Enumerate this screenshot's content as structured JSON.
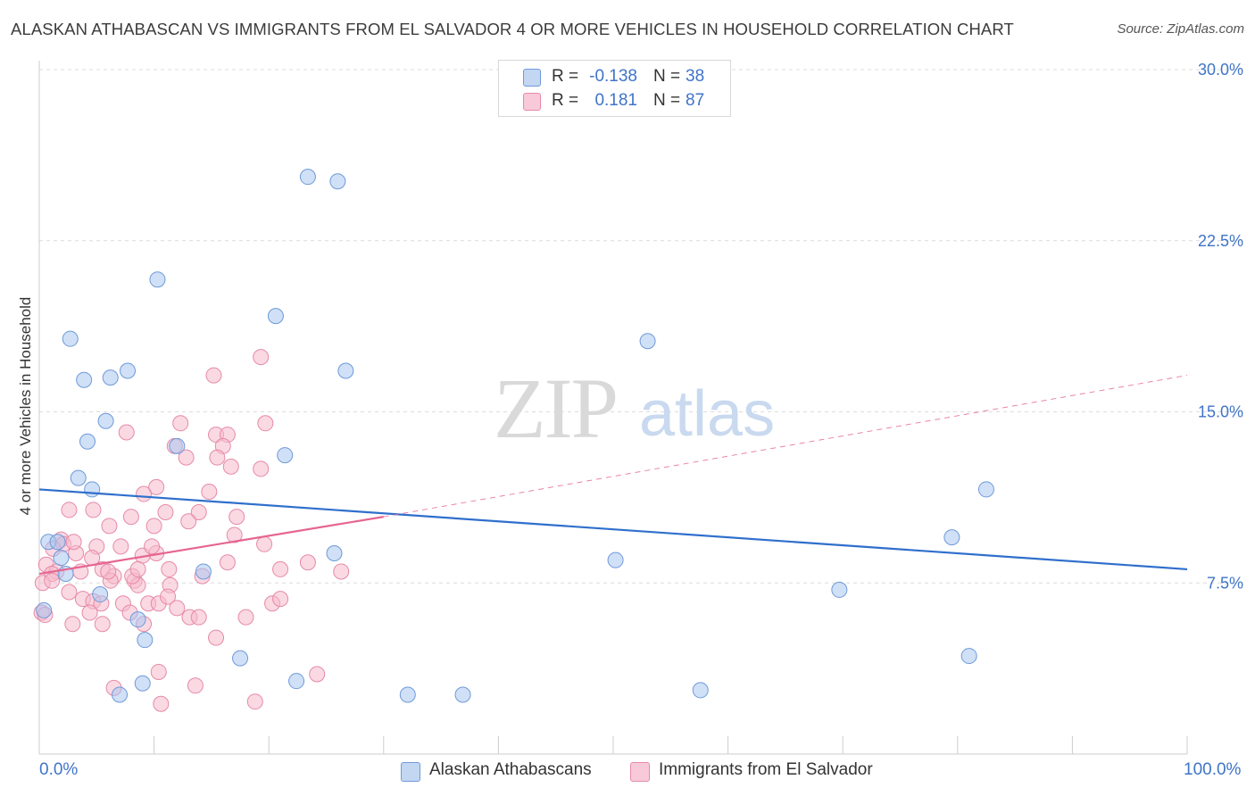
{
  "header": {
    "title": "ALASKAN ATHABASCAN VS IMMIGRANTS FROM EL SALVADOR 4 OR MORE VEHICLES IN HOUSEHOLD CORRELATION CHART",
    "source": "Source: ZipAtlas.com"
  },
  "legend": {
    "rows": [
      {
        "r_label": "R =",
        "r_value": "-0.138",
        "n_label": "N =",
        "n_value": "38"
      },
      {
        "r_label": "R =",
        "r_value": "0.181",
        "n_label": "N =",
        "n_value": "87"
      }
    ]
  },
  "bottom_legend": {
    "blue": "Alaskan Athabascans",
    "pink": "Immigrants from El Salvador"
  },
  "watermark": {
    "zip": "ZIP",
    "atlas": "atlas"
  },
  "colors": {
    "blue_fill": "#a9c7f0",
    "blue_stroke": "#6f9ad8",
    "blue_line": "#2f6fcc",
    "pink_fill": "#f5b9cc",
    "pink_stroke": "#e68aa8",
    "pink_line": "#e56591",
    "axis_text": "#3f74c8",
    "grid": "#dcdcdc"
  },
  "chart_data": {
    "type": "scatter",
    "title": "ALASKAN ATHABASCAN VS IMMIGRANTS FROM EL SALVADOR 4 OR MORE VEHICLES IN HOUSEHOLD CORRELATION CHART",
    "xlabel": "",
    "ylabel": "4 or more Vehicles in Household",
    "xlim": [
      0,
      100
    ],
    "ylim": [
      0,
      30
    ],
    "x_tick_labels": [
      "0.0%",
      "100.0%"
    ],
    "y_ticks": [
      7.5,
      15.0,
      22.5,
      30.0
    ],
    "y_tick_labels": [
      "7.5%",
      "15.0%",
      "22.5%",
      "30.0%"
    ],
    "grid": true,
    "legend_position": "top-center",
    "series": [
      {
        "name": "Alaskan Athabascans",
        "color": "#a9c7f0",
        "r": -0.138,
        "n": 38,
        "trend": {
          "x": [
            0,
            100
          ],
          "y": [
            11.6,
            8.1
          ]
        },
        "points": [
          [
            23.4,
            25.3
          ],
          [
            26.0,
            25.1
          ],
          [
            10.3,
            20.8
          ],
          [
            20.6,
            19.2
          ],
          [
            2.7,
            18.2
          ],
          [
            7.7,
            16.8
          ],
          [
            6.2,
            16.5
          ],
          [
            3.9,
            16.4
          ],
          [
            26.7,
            16.8
          ],
          [
            53.0,
            18.1
          ],
          [
            5.8,
            14.6
          ],
          [
            4.2,
            13.7
          ],
          [
            12.0,
            13.5
          ],
          [
            21.4,
            13.1
          ],
          [
            3.4,
            12.1
          ],
          [
            4.6,
            11.6
          ],
          [
            82.5,
            11.6
          ],
          [
            0.8,
            9.3
          ],
          [
            1.6,
            9.3
          ],
          [
            79.5,
            9.5
          ],
          [
            25.7,
            8.8
          ],
          [
            1.9,
            8.6
          ],
          [
            2.3,
            7.9
          ],
          [
            14.3,
            8.0
          ],
          [
            50.2,
            8.5
          ],
          [
            5.3,
            7.0
          ],
          [
            69.7,
            7.2
          ],
          [
            0.4,
            6.3
          ],
          [
            8.6,
            5.9
          ],
          [
            9.2,
            5.0
          ],
          [
            17.5,
            4.2
          ],
          [
            81.0,
            4.3
          ],
          [
            9.0,
            3.1
          ],
          [
            22.4,
            3.2
          ],
          [
            7.0,
            2.6
          ],
          [
            32.1,
            2.6
          ],
          [
            36.9,
            2.6
          ],
          [
            57.6,
            2.8
          ]
        ]
      },
      {
        "name": "Immigrants from El Salvador",
        "color": "#f5b9cc",
        "r": 0.181,
        "n": 87,
        "trend": {
          "x": [
            0,
            30
          ],
          "y": [
            7.9,
            10.4
          ]
        },
        "trend_dashed": {
          "x": [
            30,
            100
          ],
          "y": [
            10.4,
            16.6
          ]
        },
        "points": [
          [
            19.3,
            17.4
          ],
          [
            15.2,
            16.6
          ],
          [
            19.7,
            14.5
          ],
          [
            12.3,
            14.5
          ],
          [
            7.6,
            14.1
          ],
          [
            15.4,
            14.0
          ],
          [
            16.4,
            14.0
          ],
          [
            11.8,
            13.5
          ],
          [
            16.0,
            13.5
          ],
          [
            15.5,
            13.0
          ],
          [
            12.8,
            13.0
          ],
          [
            16.7,
            12.6
          ],
          [
            19.3,
            12.5
          ],
          [
            10.2,
            11.7
          ],
          [
            9.1,
            11.4
          ],
          [
            14.8,
            11.5
          ],
          [
            2.6,
            10.7
          ],
          [
            4.7,
            10.7
          ],
          [
            11.0,
            10.6
          ],
          [
            13.9,
            10.6
          ],
          [
            17.2,
            10.4
          ],
          [
            8.0,
            10.4
          ],
          [
            6.1,
            10.0
          ],
          [
            10.0,
            10.0
          ],
          [
            13.0,
            10.2
          ],
          [
            1.9,
            9.4
          ],
          [
            2.1,
            9.2
          ],
          [
            5.0,
            9.1
          ],
          [
            7.1,
            9.1
          ],
          [
            19.6,
            9.2
          ],
          [
            3.2,
            8.8
          ],
          [
            4.6,
            8.6
          ],
          [
            10.2,
            8.8
          ],
          [
            9.0,
            8.7
          ],
          [
            0.6,
            8.3
          ],
          [
            1.5,
            8.0
          ],
          [
            1.1,
            7.9
          ],
          [
            3.6,
            8.0
          ],
          [
            5.5,
            8.1
          ],
          [
            6.5,
            7.8
          ],
          [
            11.3,
            8.1
          ],
          [
            14.2,
            7.8
          ],
          [
            16.4,
            8.4
          ],
          [
            21.0,
            8.1
          ],
          [
            23.4,
            8.4
          ],
          [
            26.3,
            8.0
          ],
          [
            0.3,
            7.5
          ],
          [
            1.1,
            7.6
          ],
          [
            6.2,
            7.6
          ],
          [
            8.3,
            7.6
          ],
          [
            8.6,
            7.4
          ],
          [
            11.4,
            7.4
          ],
          [
            8.1,
            7.8
          ],
          [
            2.6,
            7.1
          ],
          [
            3.8,
            6.8
          ],
          [
            4.7,
            6.7
          ],
          [
            5.4,
            6.6
          ],
          [
            7.3,
            6.6
          ],
          [
            9.5,
            6.6
          ],
          [
            10.4,
            6.6
          ],
          [
            11.2,
            6.9
          ],
          [
            20.3,
            6.6
          ],
          [
            21.0,
            6.8
          ],
          [
            0.2,
            6.2
          ],
          [
            0.5,
            6.1
          ],
          [
            4.4,
            6.2
          ],
          [
            7.9,
            6.2
          ],
          [
            13.1,
            6.0
          ],
          [
            13.9,
            6.0
          ],
          [
            18.0,
            6.0
          ],
          [
            2.9,
            5.7
          ],
          [
            5.5,
            5.7
          ],
          [
            9.1,
            5.7
          ],
          [
            15.4,
            5.1
          ],
          [
            10.4,
            3.6
          ],
          [
            24.2,
            3.5
          ],
          [
            6.5,
            2.9
          ],
          [
            13.6,
            3.0
          ],
          [
            10.6,
            2.2
          ],
          [
            18.8,
            2.3
          ],
          [
            8.6,
            8.1
          ],
          [
            12.0,
            6.4
          ],
          [
            3.0,
            9.3
          ],
          [
            6.0,
            8.0
          ],
          [
            17.0,
            9.6
          ],
          [
            9.8,
            9.1
          ],
          [
            1.2,
            9.0
          ]
        ]
      }
    ]
  }
}
